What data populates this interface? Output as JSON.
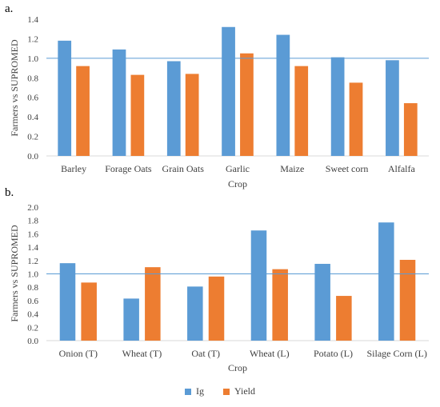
{
  "colors": {
    "series_1": "#5b9bd5",
    "series_2": "#ed7d31",
    "reference_line": "#5b9bd5",
    "axis": "#d9d9d9",
    "text": "#404040"
  },
  "panels": [
    {
      "tag": "a."
    },
    {
      "tag": "b."
    }
  ],
  "legend": [
    {
      "label": "Ig",
      "color": "#5b9bd5"
    },
    {
      "label": "Yield",
      "color": "#ed7d31"
    }
  ],
  "chart_data": [
    {
      "type": "bar",
      "xlabel": "Crop",
      "ylabel": "Farmers vs SUPROMED",
      "ylim": [
        0,
        1.4
      ],
      "yticks": [
        "0.0",
        "0.2",
        "0.4",
        "0.6",
        "0.8",
        "1.0",
        "1.2",
        "1.4"
      ],
      "reference_line": 1.0,
      "grid": false,
      "categories": [
        "Barley",
        "Forage Oats",
        "Grain Oats",
        "Garlic",
        "Maize",
        "Sweet corn",
        "Alfalfa"
      ],
      "series": [
        {
          "name": "Ig",
          "values": [
            1.18,
            1.09,
            0.97,
            1.32,
            1.24,
            1.01,
            0.98
          ]
        },
        {
          "name": "Yield",
          "values": [
            0.92,
            0.83,
            0.84,
            1.05,
            0.92,
            0.75,
            0.54
          ]
        }
      ]
    },
    {
      "type": "bar",
      "xlabel": "Crop",
      "ylabel": "Farmers vs SUPROMED",
      "ylim": [
        0,
        2.0
      ],
      "yticks": [
        "0.0",
        "0.2",
        "0.4",
        "0.6",
        "0.8",
        "1.0",
        "1.2",
        "1.4",
        "1.6",
        "1.8",
        "2.0"
      ],
      "reference_line": 1.0,
      "grid": false,
      "legend_position": "bottom",
      "categories": [
        "Onion (T)",
        "Wheat (T)",
        "Oat (T)",
        "Wheat (L)",
        "Potato (L)",
        "Silage Corn (L)"
      ],
      "series": [
        {
          "name": "Ig",
          "values": [
            1.16,
            0.63,
            0.81,
            1.65,
            1.15,
            1.77
          ]
        },
        {
          "name": "Yield",
          "values": [
            0.87,
            1.1,
            0.96,
            1.07,
            0.67,
            1.21
          ]
        }
      ]
    }
  ]
}
